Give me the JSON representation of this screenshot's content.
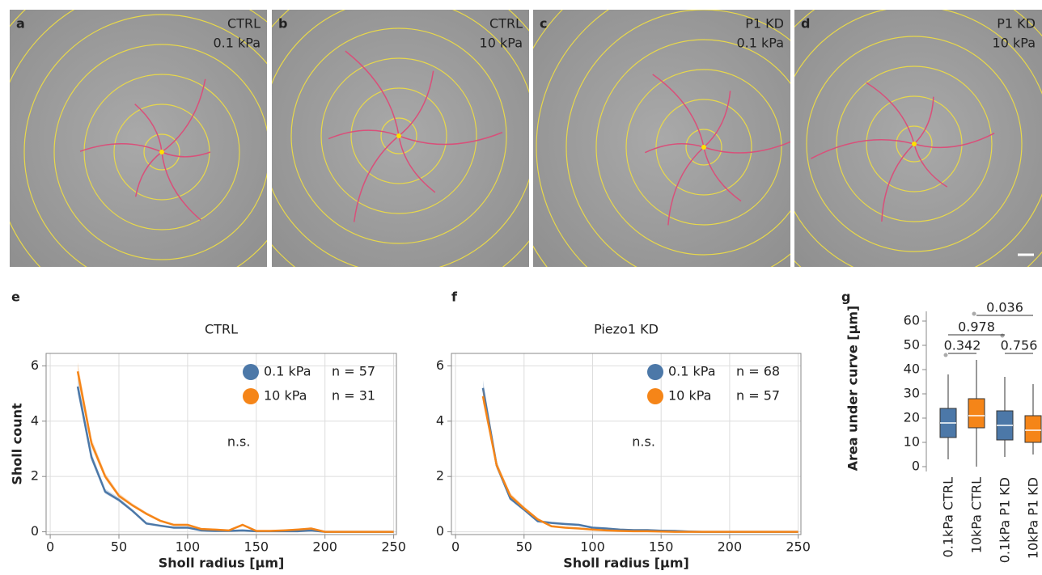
{
  "images": [
    {
      "panel": "a",
      "label": [
        "CTRL",
        "0.1 kPa"
      ]
    },
    {
      "panel": "b",
      "label": [
        "CTRL",
        "10 kPa"
      ]
    },
    {
      "panel": "c",
      "label": [
        "P1 KD",
        "0.1 kPa"
      ]
    },
    {
      "panel": "d",
      "label": [
        "P1 KD",
        "10 kPa"
      ]
    }
  ],
  "chart_data": [
    {
      "type": "line",
      "panel": "e",
      "title": "CTRL",
      "x_label": "Sholl radius [µm]",
      "y_label": "Sholl count",
      "annotation": "n.s.",
      "x": [
        20,
        30,
        40,
        50,
        60,
        70,
        80,
        90,
        100,
        110,
        120,
        130,
        140,
        150,
        160,
        170,
        180,
        190,
        200,
        210,
        220,
        230,
        240,
        250
      ],
      "series": [
        {
          "name": "0.1 kPa",
          "count_label": "n = 57",
          "color": "#4c78a8",
          "values": [
            5.25,
            2.7,
            1.45,
            1.15,
            0.75,
            0.3,
            0.22,
            0.15,
            0.15,
            0.05,
            0.03,
            0.03,
            0.05,
            0.02,
            0.02,
            0.02,
            0.02,
            0.05,
            0,
            0,
            0,
            0,
            0,
            0
          ]
        },
        {
          "name": "10 kPa",
          "count_label": "n = 31",
          "color": "#f58518",
          "values": [
            5.8,
            3.2,
            2.0,
            1.3,
            0.95,
            0.65,
            0.4,
            0.25,
            0.25,
            0.1,
            0.08,
            0.05,
            0.25,
            0.03,
            0.03,
            0.05,
            0.08,
            0.12,
            0,
            0,
            0,
            0,
            0,
            0
          ]
        }
      ],
      "xlim": [
        -3,
        252
      ],
      "xticks": [
        0,
        50,
        100,
        150,
        200,
        250
      ],
      "ylim": [
        -0.1,
        6.45
      ],
      "yticks": [
        0,
        2,
        4,
        6
      ],
      "grid": true
    },
    {
      "type": "line",
      "panel": "f",
      "title": "Piezo1 KD",
      "x_label": "Sholl radius [µm]",
      "annotation": "n.s.",
      "x": [
        20,
        30,
        40,
        50,
        60,
        70,
        80,
        90,
        100,
        110,
        120,
        130,
        140,
        150,
        160,
        170,
        180,
        190,
        200,
        210,
        220,
        230,
        240,
        250
      ],
      "series": [
        {
          "name": "0.1 kPa",
          "count_label": "n = 68",
          "color": "#4c78a8",
          "values": [
            5.2,
            2.4,
            1.2,
            0.8,
            0.38,
            0.32,
            0.28,
            0.25,
            0.15,
            0.12,
            0.08,
            0.06,
            0.06,
            0.04,
            0.03,
            0.01,
            0,
            0,
            0,
            0,
            0,
            0,
            0,
            0
          ]
        },
        {
          "name": "10 kPa",
          "count_label": "n = 57",
          "color": "#f58518",
          "values": [
            4.9,
            2.4,
            1.3,
            0.85,
            0.45,
            0.2,
            0.15,
            0.12,
            0.08,
            0.05,
            0.03,
            0.02,
            0.02,
            0.01,
            0,
            0,
            0,
            0,
            0,
            0,
            0,
            0,
            0,
            0
          ]
        }
      ],
      "xlim": [
        -3,
        252
      ],
      "xticks": [
        0,
        50,
        100,
        150,
        200,
        250
      ],
      "ylim": [
        -0.1,
        6.45
      ],
      "yticks": [
        0,
        2,
        4,
        6
      ],
      "grid": true
    },
    {
      "type": "box",
      "panel": "g",
      "y_label": "Area under curve [µm]",
      "categories": [
        "0.1kPa CTRL",
        "10kPa CTRL",
        "0.1kPa P1 KD",
        "10kPa P1 KD"
      ],
      "boxes": [
        {
          "color": "#4c78a8",
          "min": 3,
          "q1": 12,
          "median": 18,
          "q3": 24,
          "max": 38,
          "outliers": [
            46
          ]
        },
        {
          "color": "#f58518",
          "min": 0,
          "q1": 16,
          "median": 21,
          "q3": 28,
          "max": 44,
          "outliers": [
            63
          ]
        },
        {
          "color": "#4c78a8",
          "min": 4,
          "q1": 11,
          "median": 17,
          "q3": 23,
          "max": 37,
          "outliers": [
            54
          ]
        },
        {
          "color": "#f58518",
          "min": 5,
          "q1": 10,
          "median": 15,
          "q3": 21,
          "max": 34,
          "outliers": []
        }
      ],
      "comparisons": [
        "0.342",
        "0.978",
        "0.756",
        "0.036"
      ],
      "ylim": [
        -2,
        64
      ],
      "yticks": [
        0,
        10,
        20,
        30,
        40,
        50,
        60
      ]
    }
  ]
}
